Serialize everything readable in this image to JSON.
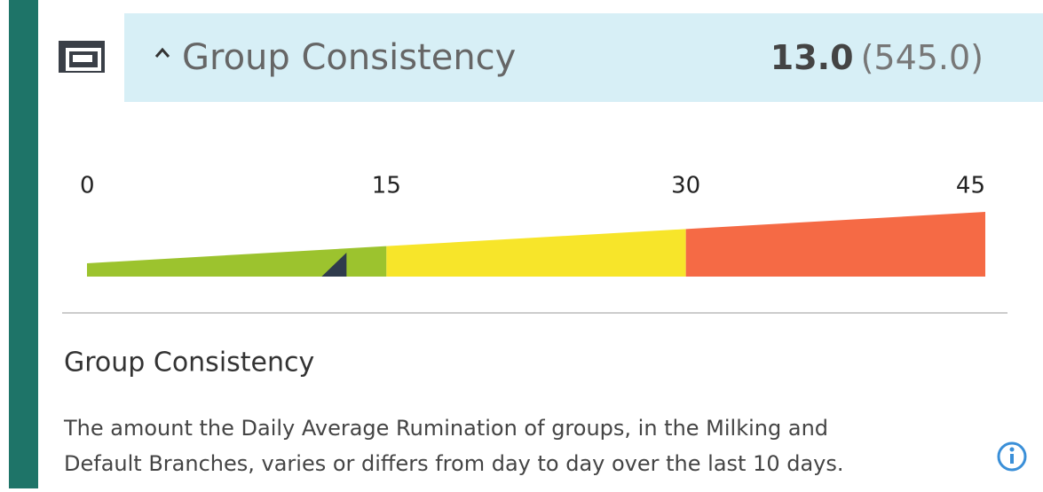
{
  "header": {
    "title": "Group Consistency",
    "value": 13,
    "value_label": "13.0",
    "total_label": "(545.0)"
  },
  "gauge": {
    "min": 0,
    "max": 45,
    "ticks": [
      0,
      15,
      30,
      45
    ],
    "bands": [
      {
        "from": 0,
        "to": 15,
        "color": "#9cc32e"
      },
      {
        "from": 15,
        "to": 30,
        "color": "#f7e52a"
      },
      {
        "from": 30,
        "to": 45,
        "color": "#f56a45"
      }
    ],
    "marker_color": "#2f3b4c"
  },
  "body": {
    "heading": "Group Consistency",
    "lines": [
      "The amount the Daily Average Rumination of groups, in the Milking and",
      "Default Branches, varies or differs from day to day over the last 10 days."
    ]
  }
}
